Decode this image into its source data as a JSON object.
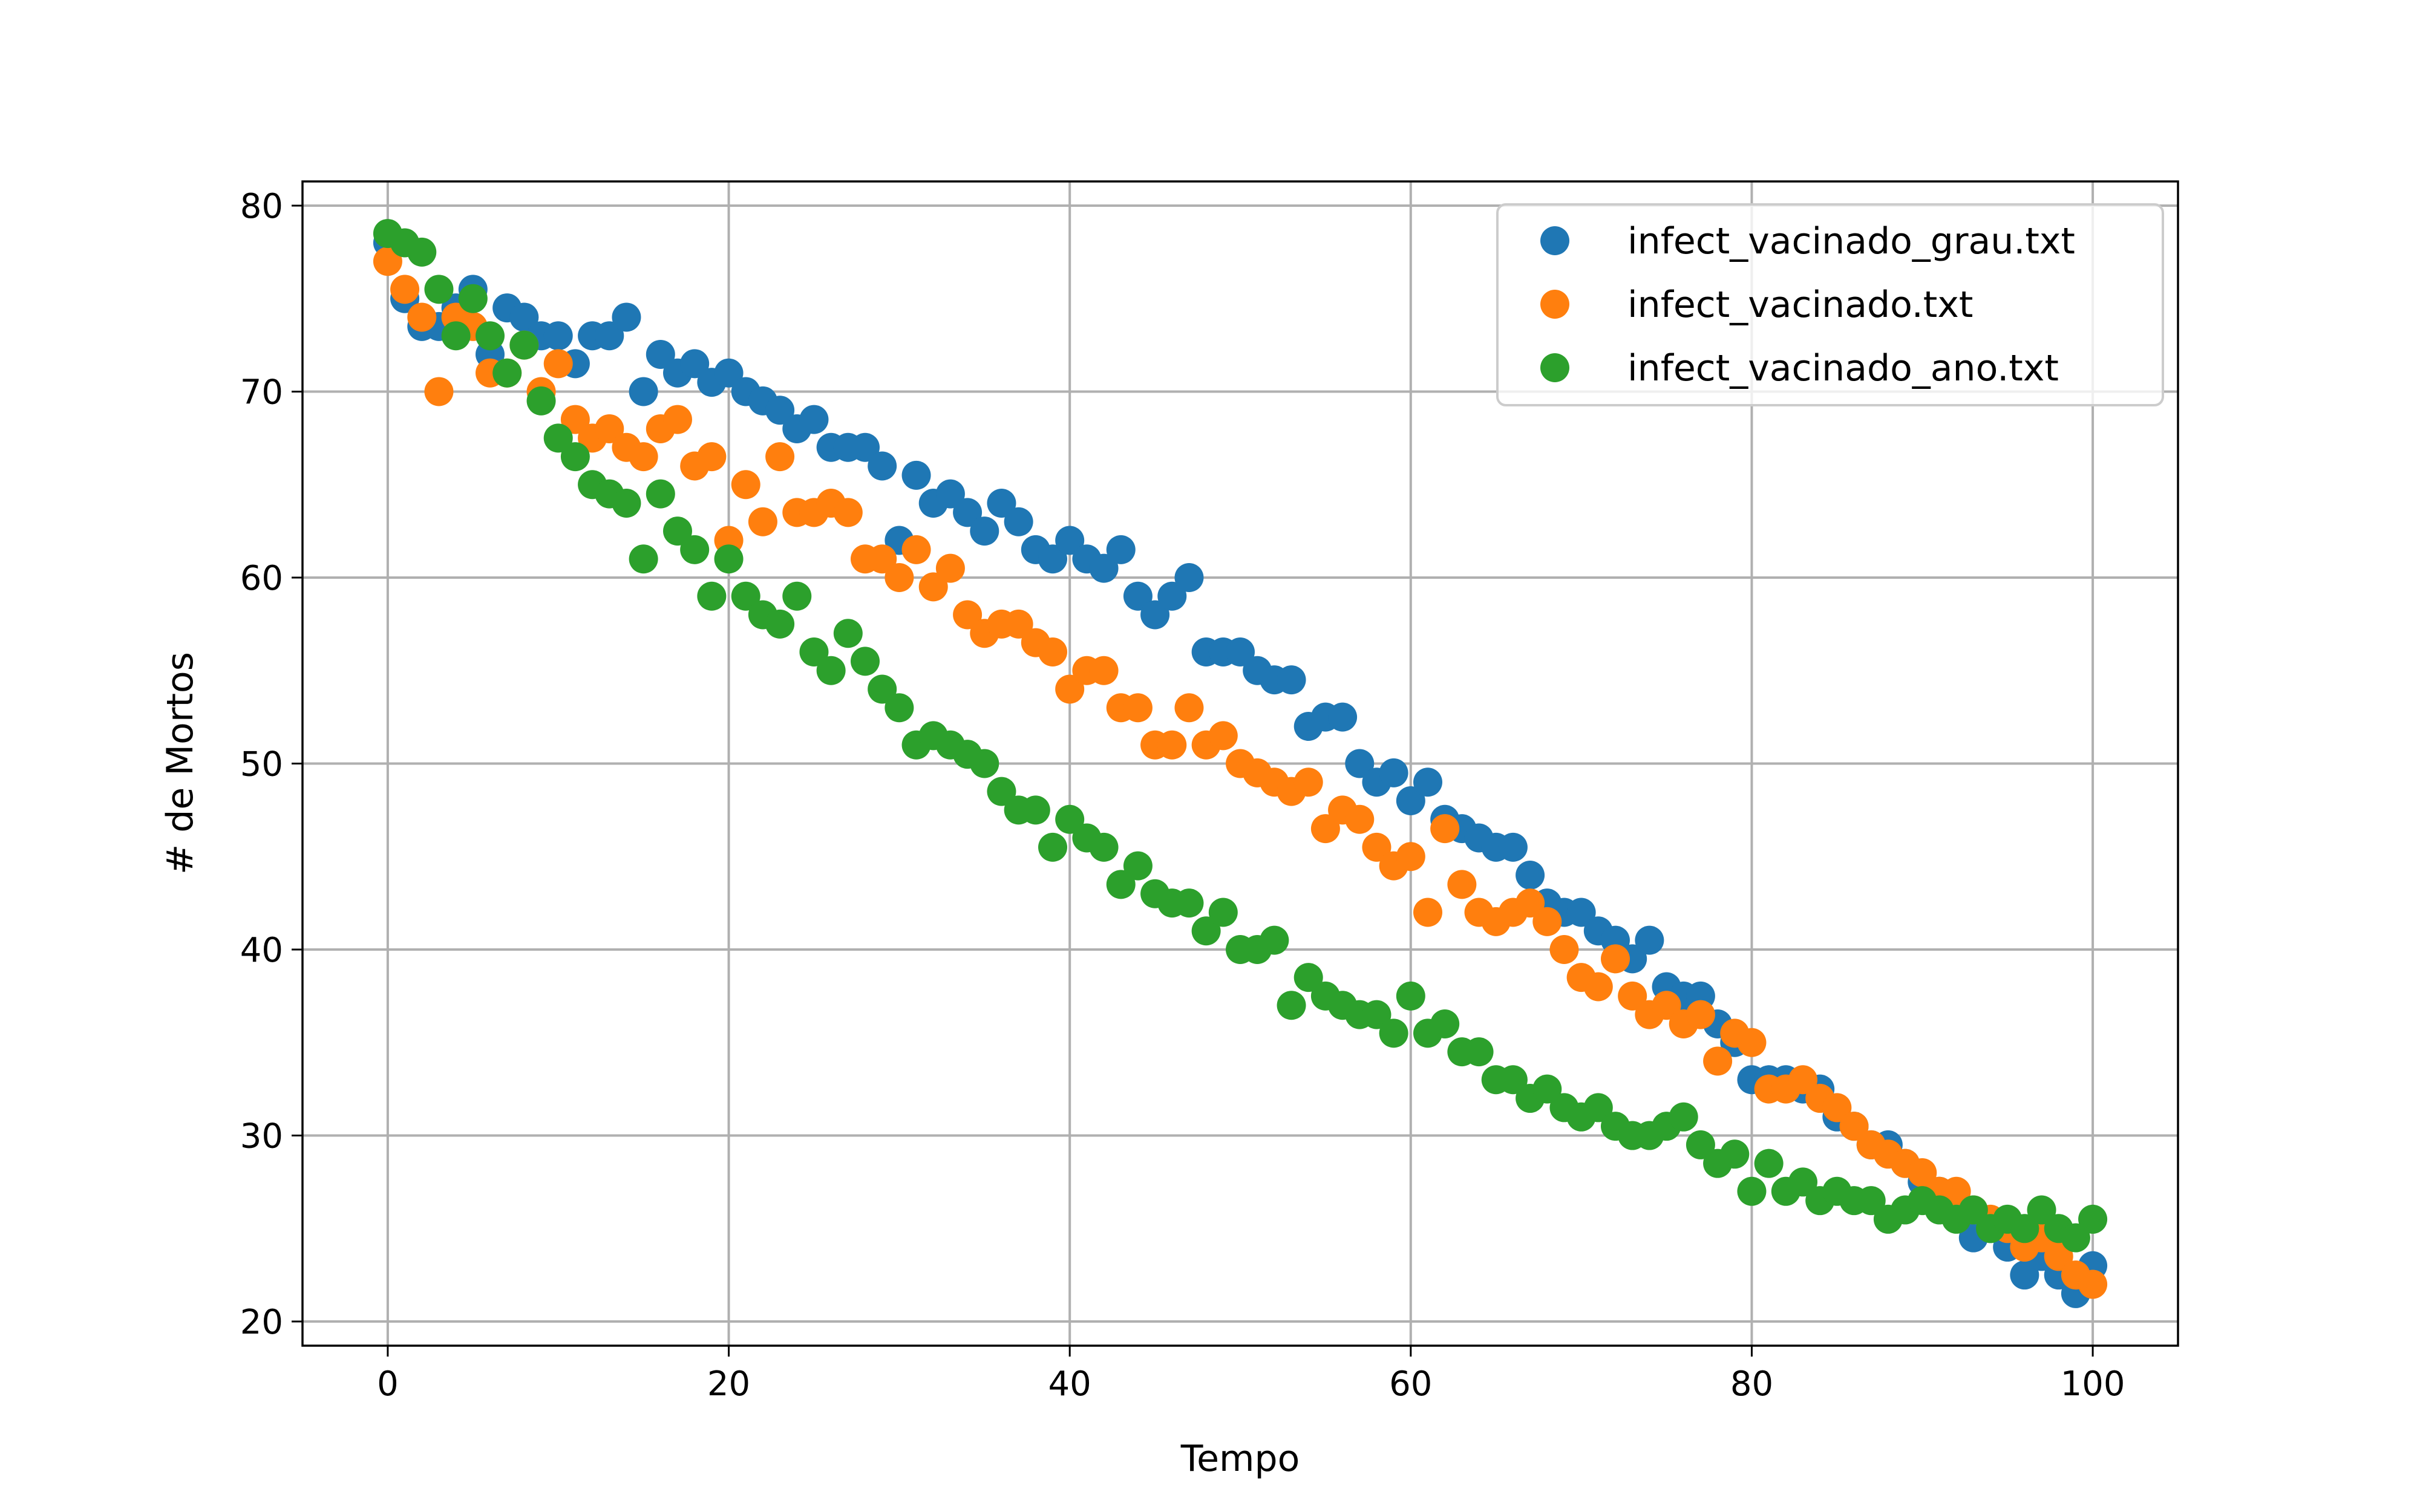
{
  "chart_data": {
    "type": "scatter",
    "title": "",
    "xlabel": "Tempo",
    "ylabel": "# de Mortos",
    "xlim": [
      -5,
      105
    ],
    "ylim": [
      18.7,
      81.3
    ],
    "xticks": [
      0,
      20,
      40,
      60,
      80,
      100
    ],
    "yticks": [
      20,
      30,
      40,
      50,
      60,
      70,
      80
    ],
    "grid": true,
    "legend_position": "upper right",
    "series": [
      {
        "name": "infect_vacinado_grau.txt",
        "color": "#1f77b4",
        "x": [
          0,
          1,
          2,
          3,
          4,
          5,
          6,
          7,
          8,
          9,
          10,
          11,
          12,
          13,
          14,
          15,
          16,
          17,
          18,
          19,
          20,
          21,
          22,
          23,
          24,
          25,
          26,
          27,
          28,
          29,
          30,
          31,
          32,
          33,
          34,
          35,
          36,
          37,
          38,
          39,
          40,
          41,
          42,
          43,
          44,
          45,
          46,
          47,
          48,
          49,
          50,
          51,
          52,
          53,
          54,
          55,
          56,
          57,
          58,
          59,
          60,
          61,
          62,
          63,
          64,
          65,
          66,
          67,
          68,
          69,
          70,
          71,
          72,
          73,
          74,
          75,
          76,
          77,
          78,
          79,
          80,
          81,
          82,
          83,
          84,
          85,
          86,
          87,
          88,
          89,
          90,
          91,
          92,
          93,
          94,
          95,
          96,
          97,
          98,
          99,
          100
        ],
        "y": [
          78.0,
          75.0,
          73.5,
          73.5,
          74.5,
          75.5,
          72.0,
          74.5,
          74.0,
          73.0,
          73.0,
          71.5,
          73.0,
          73.0,
          74.0,
          70.0,
          72.0,
          71.0,
          71.5,
          70.5,
          71.0,
          70.0,
          69.5,
          69.0,
          68.0,
          68.5,
          67.0,
          67.0,
          67.0,
          66.0,
          62.0,
          65.5,
          64.0,
          64.5,
          63.5,
          62.5,
          64.0,
          63.0,
          61.5,
          61.0,
          62.0,
          61.0,
          60.5,
          61.5,
          59.0,
          58.0,
          59.0,
          60.0,
          56.0,
          56.0,
          56.0,
          55.0,
          54.5,
          54.5,
          52.0,
          52.5,
          52.5,
          50.0,
          49.0,
          49.5,
          48.0,
          49.0,
          47.0,
          46.5,
          46.0,
          45.5,
          45.5,
          44.0,
          42.5,
          42.0,
          42.0,
          41.0,
          40.5,
          39.5,
          40.5,
          38.0,
          37.5,
          37.5,
          36.0,
          35.0,
          33.0,
          33.0,
          33.0,
          32.5,
          32.5,
          31.0,
          30.5,
          29.5,
          29.5,
          28.5,
          27.5,
          27.0,
          26.5,
          24.5,
          25.0,
          24.0,
          22.5,
          23.5,
          22.5,
          21.5,
          23.0
        ]
      },
      {
        "name": "infect_vacinado.txt",
        "color": "#ff7f0e",
        "x": [
          0,
          1,
          2,
          3,
          4,
          5,
          6,
          7,
          8,
          9,
          10,
          11,
          12,
          13,
          14,
          15,
          16,
          17,
          18,
          19,
          20,
          21,
          22,
          23,
          24,
          25,
          26,
          27,
          28,
          29,
          30,
          31,
          32,
          33,
          34,
          35,
          36,
          37,
          38,
          39,
          40,
          41,
          42,
          43,
          44,
          45,
          46,
          47,
          48,
          49,
          50,
          51,
          52,
          53,
          54,
          55,
          56,
          57,
          58,
          59,
          60,
          61,
          62,
          63,
          64,
          65,
          66,
          67,
          68,
          69,
          70,
          71,
          72,
          73,
          74,
          75,
          76,
          77,
          78,
          79,
          80,
          81,
          82,
          83,
          84,
          85,
          86,
          87,
          88,
          89,
          90,
          91,
          92,
          93,
          94,
          95,
          96,
          97,
          98,
          99,
          100
        ],
        "y": [
          77.0,
          75.5,
          74.0,
          70.0,
          74.0,
          73.5,
          71.0,
          71.0,
          72.5,
          70.0,
          71.5,
          68.5,
          67.5,
          68.0,
          67.0,
          66.5,
          68.0,
          68.5,
          66.0,
          66.5,
          62.0,
          65.0,
          63.0,
          66.5,
          63.5,
          63.5,
          64.0,
          63.5,
          61.0,
          61.0,
          60.0,
          61.5,
          59.5,
          60.5,
          58.0,
          57.0,
          57.5,
          57.5,
          56.5,
          56.0,
          54.0,
          55.0,
          55.0,
          53.0,
          53.0,
          51.0,
          51.0,
          53.0,
          51.0,
          51.5,
          50.0,
          49.5,
          49.0,
          48.5,
          49.0,
          46.5,
          47.5,
          47.0,
          45.5,
          44.5,
          45.0,
          42.0,
          46.5,
          43.5,
          42.0,
          41.5,
          42.0,
          42.5,
          41.5,
          40.0,
          38.5,
          38.0,
          39.5,
          37.5,
          36.5,
          37.0,
          36.0,
          36.5,
          34.0,
          35.5,
          35.0,
          32.5,
          32.5,
          33.0,
          32.0,
          31.5,
          30.5,
          29.5,
          29.0,
          28.5,
          28.0,
          27.0,
          27.0,
          26.0,
          25.5,
          25.0,
          24.0,
          24.5,
          23.5,
          22.5,
          22.0
        ]
      },
      {
        "name": "infect_vacinado_ano.txt",
        "color": "#2ca02c",
        "x": [
          0,
          1,
          2,
          3,
          4,
          5,
          6,
          7,
          8,
          9,
          10,
          11,
          12,
          13,
          14,
          15,
          16,
          17,
          18,
          19,
          20,
          21,
          22,
          23,
          24,
          25,
          26,
          27,
          28,
          29,
          30,
          31,
          32,
          33,
          34,
          35,
          36,
          37,
          38,
          39,
          40,
          41,
          42,
          43,
          44,
          45,
          46,
          47,
          48,
          49,
          50,
          51,
          52,
          53,
          54,
          55,
          56,
          57,
          58,
          59,
          60,
          61,
          62,
          63,
          64,
          65,
          66,
          67,
          68,
          69,
          70,
          71,
          72,
          73,
          74,
          75,
          76,
          77,
          78,
          79,
          80,
          81,
          82,
          83,
          84,
          85,
          86,
          87,
          88,
          89,
          90,
          91,
          92,
          93,
          94,
          95,
          96,
          97,
          98,
          99,
          100
        ],
        "y": [
          78.5,
          78.0,
          77.5,
          75.5,
          73.0,
          75.0,
          73.0,
          71.0,
          72.5,
          69.5,
          67.5,
          66.5,
          65.0,
          64.5,
          64.0,
          61.0,
          64.5,
          62.5,
          61.5,
          59.0,
          61.0,
          59.0,
          58.0,
          57.5,
          59.0,
          56.0,
          55.0,
          57.0,
          55.5,
          54.0,
          53.0,
          51.0,
          51.5,
          51.0,
          50.5,
          50.0,
          48.5,
          47.5,
          47.5,
          45.5,
          47.0,
          46.0,
          45.5,
          43.5,
          44.5,
          43.0,
          42.5,
          42.5,
          41.0,
          42.0,
          40.0,
          40.0,
          40.5,
          37.0,
          38.5,
          37.5,
          37.0,
          36.5,
          36.5,
          35.5,
          37.5,
          35.5,
          36.0,
          34.5,
          34.5,
          33.0,
          33.0,
          32.0,
          32.5,
          31.5,
          31.0,
          31.5,
          30.5,
          30.0,
          30.0,
          30.5,
          31.0,
          29.5,
          28.5,
          29.0,
          27.0,
          28.5,
          27.0,
          27.5,
          26.5,
          27.0,
          26.5,
          26.5,
          25.5,
          26.0,
          26.5,
          26.0,
          25.5,
          26.0,
          25.0,
          25.5,
          25.0,
          26.0,
          25.0,
          24.5,
          25.5
        ]
      }
    ]
  }
}
